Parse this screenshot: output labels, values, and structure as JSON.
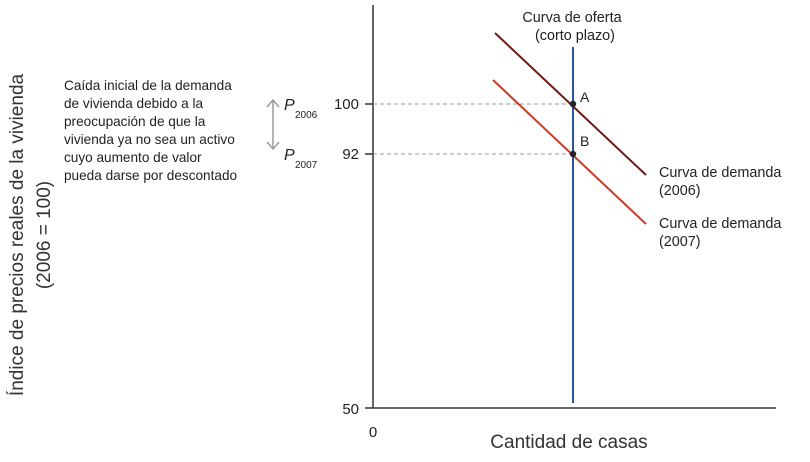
{
  "chart_data": {
    "type": "line",
    "ylabel_line1": "Índice de precios reales de la vivienda",
    "ylabel_line2": "(2006 = 100)",
    "xlabel": "Cantidad de casas",
    "x_origin_label": "0",
    "y_ticks": [
      "100",
      "92",
      "50"
    ],
    "supply_label_line1": "Curva de oferta",
    "supply_label_line2": "(corto plazo)",
    "demand_2006_line1": "Curva de demanda",
    "demand_2006_line2": "(2006)",
    "demand_2007_line1": "Curva de demanda",
    "demand_2007_line2": "(2007)",
    "point_a": "A",
    "point_b": "B",
    "p2006_main": "P",
    "p2006_sub": "2006",
    "p2007_main": "P",
    "p2007_sub": "2007",
    "annotation_lines": [
      "Caída inicial de la demanda",
      "de vivienda debido a la",
      "preocupación de que la",
      "vivienda ya no sea un activo",
      "cuyo aumento de valor",
      "pueda darse por descontado"
    ],
    "colors": {
      "axis": "#333333",
      "supply": "#2f4fa8",
      "demand_2006": "#6e1a12",
      "demand_2007": "#cc3a26",
      "guide": "#9a9a9a",
      "arrow": "#9a9a9a"
    }
  }
}
